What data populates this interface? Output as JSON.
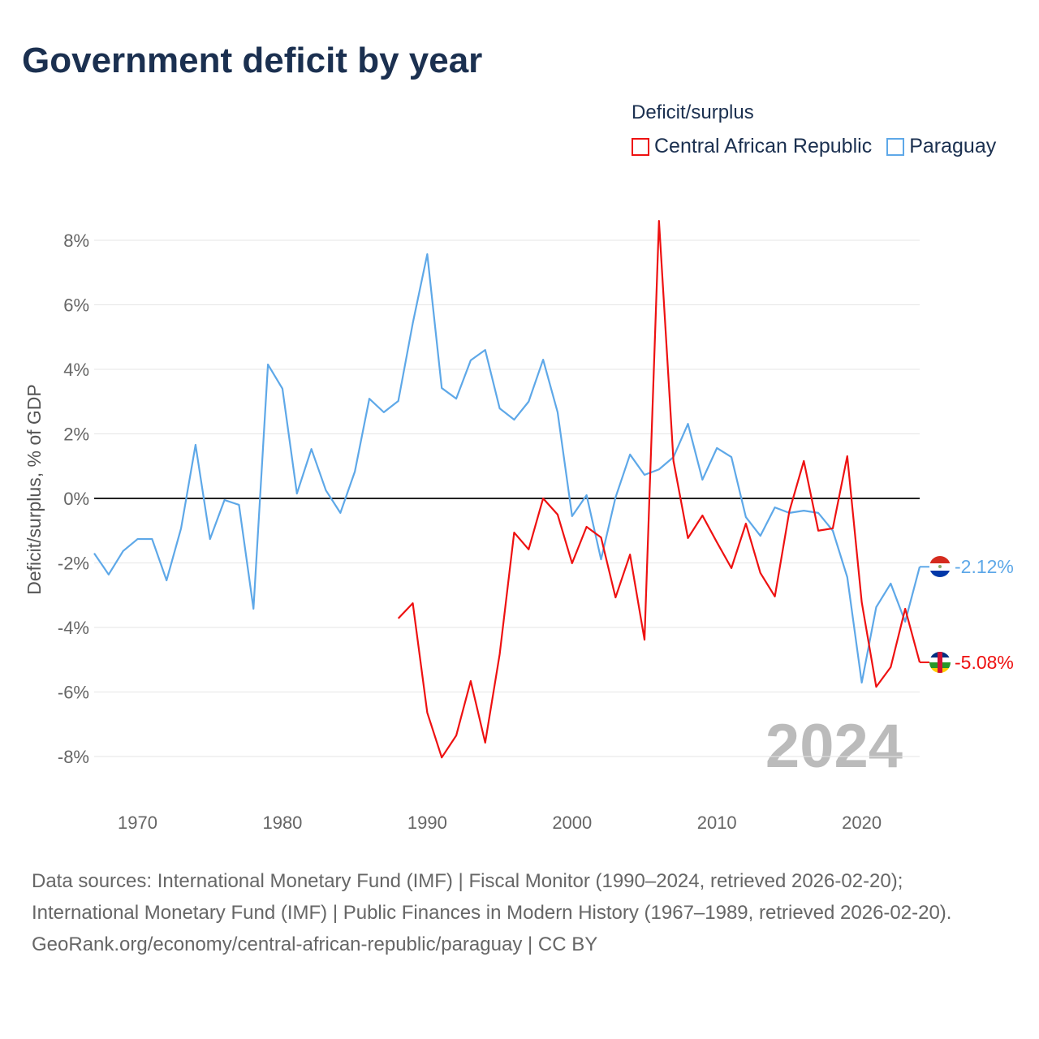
{
  "title": "Government deficit by year",
  "legend": {
    "title": "Deficit/surplus",
    "items": [
      {
        "name": "Central African Republic",
        "color": "#ee1111"
      },
      {
        "name": "Paraguay",
        "color": "#5ea8e8"
      }
    ]
  },
  "year_label": "2024",
  "end_labels": {
    "paraguay": "-2.12%",
    "car": "-5.08%"
  },
  "sources": {
    "line1": "Data sources: International Monetary Fund (IMF) | Fiscal Monitor (1990–2024, retrieved 2026-02-20); International Monetary Fund (IMF) | Public Finances in Modern History (1967–1989, retrieved 2026-02-20).",
    "line2": "GeoRank.org/economy/central-african-republic/paraguay | CC BY"
  },
  "chart_data": {
    "type": "line",
    "title": "Government deficit by year",
    "xlabel": "",
    "ylabel": "Deficit/surplus, % of GDP",
    "xlim": [
      1967,
      2024
    ],
    "ylim": [
      -9,
      8.6
    ],
    "xticks": [
      1970,
      1980,
      1990,
      2000,
      2010,
      2020
    ],
    "yticks": [
      8,
      6,
      4,
      2,
      0,
      -2,
      -4,
      -6,
      -8
    ],
    "ytick_labels": [
      "8%",
      "6%",
      "4%",
      "2%",
      "0%",
      "-2%",
      "-4%",
      "-6%",
      "-8%"
    ],
    "grid": true,
    "legend_position": "top-right",
    "series": [
      {
        "name": "Paraguay",
        "color": "#5ea8e8",
        "start_year": 1967,
        "values": [
          -1.7,
          -2.36,
          -1.63,
          -1.26,
          -1.26,
          -2.54,
          -0.93,
          1.66,
          -1.26,
          -0.05,
          -0.2,
          -3.42,
          4.15,
          3.4,
          0.15,
          1.53,
          0.25,
          -0.45,
          0.83,
          3.09,
          2.67,
          3.02,
          5.43,
          7.57,
          3.42,
          3.09,
          4.28,
          4.6,
          2.79,
          2.44,
          3.0,
          4.3,
          2.67,
          -0.55,
          0.1,
          -1.89,
          0.03,
          1.36,
          0.73,
          0.9,
          1.28,
          2.31,
          0.58,
          1.56,
          1.28,
          -0.58,
          -1.16,
          -0.28,
          -0.45,
          -0.38,
          -0.45,
          -1.0,
          -2.44,
          -5.71,
          -3.37,
          -2.64,
          -3.82,
          -2.12
        ]
      },
      {
        "name": "Central African Republic",
        "color": "#ee1111",
        "start_year": 1988,
        "values": [
          -3.72,
          -3.25,
          -6.64,
          -8.03,
          -7.35,
          -5.66,
          -7.57,
          -4.83,
          -1.06,
          -1.58,
          0,
          -0.5,
          -2.01,
          -0.88,
          -1.21,
          -3.07,
          -1.74,
          -4.38,
          8.6,
          1.16,
          -1.23,
          -0.53,
          -1.36,
          -2.16,
          -0.78,
          -2.31,
          -3.04,
          -0.4,
          1.16,
          -1.0,
          -0.93,
          1.31,
          -3.22,
          -5.84,
          -5.23,
          -3.42,
          -5.08
        ]
      }
    ]
  }
}
